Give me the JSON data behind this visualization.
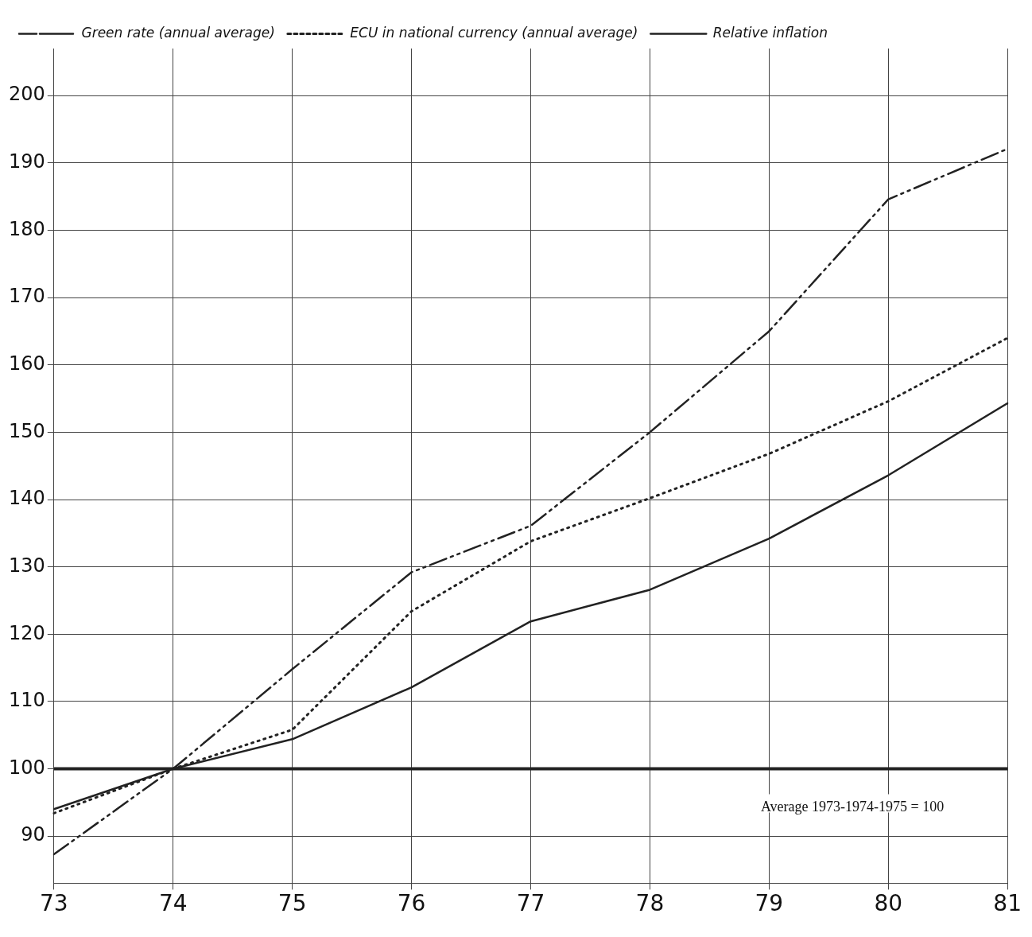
{
  "chart_data": {
    "type": "line",
    "categories": [
      "73",
      "74",
      "75",
      "76",
      "77",
      "78",
      "79",
      "80",
      "81"
    ],
    "series": [
      {
        "name": "Green rate (annual average)",
        "color": "#222222",
        "line_style": "dashed",
        "values": [
          87.3,
          100,
          114.8,
          129.2,
          136.1,
          150,
          165,
          184.6,
          192.1
        ]
      },
      {
        "name": "ECU in national currency (annual average)",
        "color": "#222222",
        "line_style": "dotted",
        "values": [
          93.4,
          100,
          105.8,
          123.4,
          133.8,
          140.2,
          146.8,
          154.6,
          164
        ]
      },
      {
        "name": "Relative inflation",
        "color": "#222222",
        "line_style": "solid",
        "values": [
          94,
          100,
          104.4,
          112.1,
          121.9,
          126.6,
          134.2,
          143.6,
          154.3
        ]
      }
    ],
    "ylim": [
      83,
      207
    ],
    "yticks": [
      90,
      100,
      110,
      120,
      130,
      140,
      150,
      160,
      170,
      180,
      190,
      200
    ],
    "ref_lines": [
      {
        "axis": "y",
        "value": 100,
        "color": "#222222"
      }
    ],
    "annotations": [
      "Average 1973-1974-1975 = 100"
    ],
    "grid": true,
    "legend": "top left",
    "marker": "none"
  }
}
